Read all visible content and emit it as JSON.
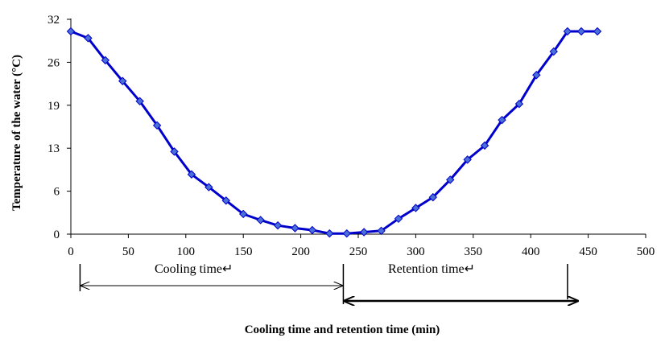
{
  "chart_data": {
    "type": "line",
    "xlabel": "Cooling time and retention time (min)",
    "ylabel": "Temperature of the water (°C)",
    "xlim": [
      0,
      500
    ],
    "ylim": [
      0,
      32
    ],
    "x_ticks": [
      "0",
      "50",
      "100",
      "150",
      "200",
      "250",
      "300",
      "350",
      "400",
      "450",
      "500"
    ],
    "y_ticks": [
      "0",
      "6",
      "13",
      "19",
      "26",
      "32"
    ],
    "grid": false,
    "legend": "none",
    "series": [
      {
        "color": "#0000CC",
        "marker_color": "#4A6FD8",
        "x": [
          0,
          15,
          30,
          45,
          60,
          75,
          90,
          105,
          120,
          135,
          150,
          165,
          180,
          195,
          210,
          225,
          240,
          255,
          270,
          285,
          300,
          315,
          330,
          345,
          360,
          375,
          390,
          405,
          420,
          432,
          444,
          458
        ],
        "y": [
          30.2,
          29.2,
          25.9,
          22.8,
          19.8,
          16.2,
          12.3,
          8.9,
          7.0,
          5.0,
          3.0,
          2.1,
          1.3,
          0.9,
          0.6,
          0.1,
          0.1,
          0.3,
          0.5,
          2.3,
          3.9,
          5.5,
          8.1,
          11.1,
          13.2,
          17.0,
          19.4,
          23.7,
          27.2,
          30.2,
          30.2,
          30.2
        ]
      }
    ],
    "annotations": {
      "cooling_label": "Cooling time↵",
      "retention_label": "Retention time↵",
      "cooling_span": [
        8,
        237
      ],
      "retention_span": [
        237,
        432
      ]
    }
  }
}
